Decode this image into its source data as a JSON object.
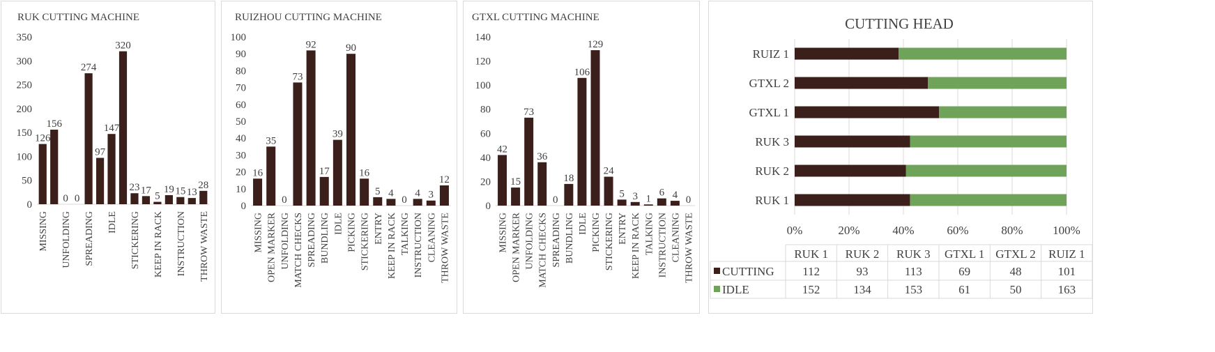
{
  "colors": {
    "bar": "#3b1f1a",
    "cutting": "#3b1f1a",
    "idle": "#70a35a",
    "grid": "#d9d9d9",
    "text": "#404040"
  },
  "chart_data": [
    {
      "type": "bar",
      "title": "RUK CUTTING MACHINE",
      "categories": [
        "MISSING",
        "",
        "UNFOLDING",
        "",
        "SPREADING",
        "",
        "IDLE",
        "",
        "STICKERING",
        "",
        "KEEP IN RACK",
        "",
        "INSTRUCTION",
        "",
        "THROW WASTE"
      ],
      "values": [
        126,
        156,
        0,
        0,
        274,
        97,
        147,
        320,
        23,
        17,
        5,
        19,
        15,
        13,
        28
      ],
      "data_labels": [
        "126",
        "156",
        "0",
        "0",
        "274",
        "97",
        "147",
        "320",
        "23",
        "17",
        "5",
        "19",
        "15",
        "13",
        "28"
      ],
      "yticks": [
        "0",
        "50",
        "100",
        "150",
        "200",
        "250",
        "300",
        "350"
      ],
      "ylim": [
        0,
        350
      ],
      "grid": false
    },
    {
      "type": "bar",
      "title": "RUIZHOU CUTTING MACHINE",
      "categories": [
        "MISSING",
        "OPEN MARKER",
        "UNFOLDING",
        "MATCH CHECKS",
        "SPREADING",
        "BUNDLING",
        "IDLE",
        "PICKING",
        "STICKERING",
        "ENTRY",
        "KEEP IN RACK",
        "TALKING",
        "INSTRUCTION",
        "CLEANING",
        "THROW WASTE"
      ],
      "values": [
        16,
        35,
        0,
        73,
        92,
        17,
        39,
        90,
        16,
        5,
        4,
        0,
        4,
        3,
        12
      ],
      "data_labels": [
        "16",
        "35",
        "0",
        "73",
        "92",
        "17",
        "39",
        "90",
        "16",
        "5",
        "4",
        "0",
        "4",
        "3",
        "12"
      ],
      "yticks": [
        "0",
        "10",
        "20",
        "30",
        "40",
        "50",
        "60",
        "70",
        "80",
        "90",
        "100"
      ],
      "ylim": [
        0,
        100
      ],
      "grid": false
    },
    {
      "type": "bar",
      "title": "GTXL CUTTING MACHINE",
      "categories": [
        "MISSING",
        "OPEN MARKER",
        "UNFOLDING",
        "MATCH CHECKS",
        "SPREADING",
        "BUNDLING",
        "IDLE",
        "PICKING",
        "STICKERING",
        "ENTRY",
        "KEEP IN RACK",
        "TALKING",
        "INSTRUCTION",
        "CLEANING",
        "THROW WASTE"
      ],
      "values": [
        42,
        15,
        73,
        36,
        0,
        18,
        106,
        129,
        24,
        5,
        3,
        1,
        6,
        4,
        0
      ],
      "data_labels": [
        "42",
        "15",
        "73",
        "36",
        "0",
        "18",
        "106",
        "129",
        "24",
        "5",
        "3",
        "1",
        "6",
        "4",
        "0"
      ],
      "yticks": [
        "0",
        "20",
        "40",
        "60",
        "80",
        "100",
        "120",
        "140"
      ],
      "ylim": [
        0,
        140
      ],
      "grid": false
    },
    {
      "type": "bar",
      "orientation": "horizontal",
      "stacked": "percent",
      "title": "CUTTING HEAD",
      "categories": [
        "RUK 1",
        "RUK 2",
        "RUK 3",
        "GTXL 1",
        "GTXL 2",
        "RUIZ 1"
      ],
      "series": [
        {
          "name": "CUTTING",
          "values": [
            112,
            93,
            113,
            69,
            48,
            101
          ]
        },
        {
          "name": "IDLE",
          "values": [
            152,
            134,
            153,
            61,
            50,
            163
          ]
        }
      ],
      "xticks": [
        "0%",
        "20%",
        "40%",
        "60%",
        "80%",
        "100%"
      ],
      "xlim": [
        0,
        100
      ],
      "grid": true,
      "data_table": true
    }
  ]
}
